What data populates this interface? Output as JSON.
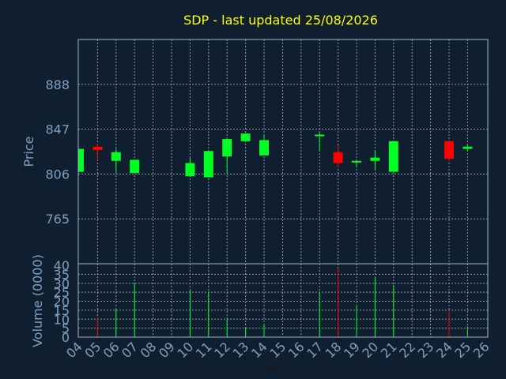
{
  "title": "SDP - last updated 25/08/2026",
  "colors": {
    "background": "#0f1f30",
    "title": "#ffff00",
    "axis_text": "#7f9fbf",
    "frame": "#9fb3c8",
    "grid": "#8a9aab",
    "up": "#00ff22",
    "down": "#ff0000"
  },
  "chart_data": [
    {
      "type": "candlestick",
      "ylabel": "Price",
      "yticks": [
        765,
        806,
        847,
        888
      ],
      "ylim": [
        724,
        929
      ],
      "grid": true,
      "candles": [
        {
          "day": "04",
          "open": 808,
          "high": 829,
          "low": 808,
          "close": 829,
          "dir": "up"
        },
        {
          "day": "05",
          "open": 831,
          "high": 834,
          "low": 820,
          "close": 828,
          "dir": "down"
        },
        {
          "day": "06",
          "open": 818,
          "high": 829,
          "low": 808,
          "close": 826,
          "dir": "up"
        },
        {
          "day": "07",
          "open": 807,
          "high": 819,
          "low": 807,
          "close": 819,
          "dir": "up"
        },
        {
          "day": "10",
          "open": 804,
          "high": 821,
          "low": 804,
          "close": 816,
          "dir": "up"
        },
        {
          "day": "11",
          "open": 803,
          "high": 827,
          "low": 803,
          "close": 827,
          "dir": "up"
        },
        {
          "day": "12",
          "open": 822,
          "high": 838,
          "low": 807,
          "close": 838,
          "dir": "up"
        },
        {
          "day": "13",
          "open": 836,
          "high": 843,
          "low": 836,
          "close": 843,
          "dir": "up"
        },
        {
          "day": "14",
          "open": 823,
          "high": 841,
          "low": 823,
          "close": 837,
          "dir": "up"
        },
        {
          "day": "17",
          "open": 841,
          "high": 844,
          "low": 827,
          "close": 842,
          "dir": "up"
        },
        {
          "day": "18",
          "open": 826,
          "high": 832,
          "low": 812,
          "close": 816,
          "dir": "down"
        },
        {
          "day": "19",
          "open": 817,
          "high": 818,
          "low": 812,
          "close": 818,
          "dir": "up"
        },
        {
          "day": "20",
          "open": 818,
          "high": 828,
          "low": 810,
          "close": 821,
          "dir": "up"
        },
        {
          "day": "21",
          "open": 808,
          "high": 836,
          "low": 808,
          "close": 836,
          "dir": "up"
        },
        {
          "day": "24",
          "open": 836,
          "high": 836,
          "low": 818,
          "close": 820,
          "dir": "down"
        },
        {
          "day": "25",
          "open": 829,
          "high": 833,
          "low": 827,
          "close": 831,
          "dir": "up"
        }
      ]
    },
    {
      "type": "bar",
      "ylabel": "Volume (0000)",
      "xlabel": "Day",
      "yticks": [
        0,
        5,
        10,
        15,
        20,
        25,
        30,
        35,
        40
      ],
      "ylim": [
        0,
        40
      ],
      "categories": [
        "04",
        "05",
        "06",
        "07",
        "08",
        "09",
        "10",
        "11",
        "12",
        "13",
        "14",
        "15",
        "16",
        "17",
        "18",
        "19",
        "20",
        "21",
        "22",
        "23",
        "24",
        "25",
        "26"
      ],
      "volumes": [
        {
          "day": "05",
          "value": 11,
          "dir": "down"
        },
        {
          "day": "06",
          "value": 16,
          "dir": "up"
        },
        {
          "day": "07",
          "value": 30,
          "dir": "up"
        },
        {
          "day": "10",
          "value": 26,
          "dir": "up"
        },
        {
          "day": "11",
          "value": 25,
          "dir": "up"
        },
        {
          "day": "12",
          "value": 10,
          "dir": "up"
        },
        {
          "day": "13",
          "value": 5,
          "dir": "up"
        },
        {
          "day": "14",
          "value": 7,
          "dir": "up"
        },
        {
          "day": "17",
          "value": 25,
          "dir": "up"
        },
        {
          "day": "18",
          "value": 38,
          "dir": "down"
        },
        {
          "day": "19",
          "value": 18,
          "dir": "up"
        },
        {
          "day": "20",
          "value": 33,
          "dir": "up"
        },
        {
          "day": "21",
          "value": 29,
          "dir": "up"
        },
        {
          "day": "24",
          "value": 15,
          "dir": "down"
        },
        {
          "day": "25",
          "value": 6,
          "dir": "up"
        }
      ]
    }
  ]
}
